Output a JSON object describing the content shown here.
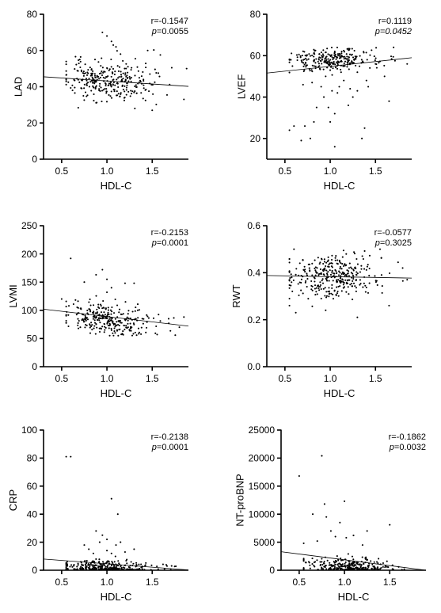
{
  "chart_data": [
    {
      "id": "lad",
      "type": "scatter",
      "xlabel": "HDL-C",
      "ylabel": "LAD",
      "xlim": [
        0.3,
        1.9
      ],
      "ylim": [
        0,
        80
      ],
      "xticks": [
        0.5,
        1.0,
        1.5
      ],
      "xtick_labels": [
        "0.5",
        "1.0",
        "1.5"
      ],
      "yticks": [
        0,
        20,
        40,
        60,
        80
      ],
      "ytick_labels": [
        "0",
        "20",
        "40",
        "60",
        "80"
      ],
      "stats": {
        "r": "r=-0.1547",
        "p_prefix": "p",
        "p_value": "=0.0055",
        "p_italic_value": false
      },
      "fit_line": {
        "x": [
          0.3,
          1.9
        ],
        "y": [
          45.5,
          40.2
        ]
      },
      "gen": {
        "n": 300,
        "yCenterAt1": 43.0,
        "slope": -3.3,
        "spread": 5.5,
        "ymin": 26,
        "ymax": 70,
        "seed": 11
      },
      "points": [
        [
          0.95,
          70
        ],
        [
          1.0,
          68
        ],
        [
          1.05,
          65
        ],
        [
          1.07,
          63
        ],
        [
          1.1,
          62
        ],
        [
          1.45,
          60
        ],
        [
          1.88,
          50
        ],
        [
          1.85,
          33
        ],
        [
          1.5,
          27
        ],
        [
          0.62,
          38
        ],
        [
          0.7,
          55
        ],
        [
          1.15,
          58
        ]
      ]
    },
    {
      "id": "lvef",
      "type": "scatter",
      "xlabel": "HDL-C",
      "ylabel": "LVEF",
      "xlim": [
        0.3,
        1.9
      ],
      "ylim": [
        10,
        80
      ],
      "xticks": [
        0.5,
        1.0,
        1.5
      ],
      "xtick_labels": [
        "0.5",
        "1.0",
        "1.5"
      ],
      "yticks": [
        20,
        40,
        60,
        80
      ],
      "ytick_labels": [
        "20",
        "40",
        "60",
        "80"
      ],
      "stats": {
        "r": "r=0.1119",
        "p_prefix": "p",
        "p_value": "=0.0452",
        "p_italic_value": true
      },
      "fit_line": {
        "x": [
          0.3,
          1.9
        ],
        "y": [
          51.6,
          59.0
        ]
      },
      "gen": {
        "n": 260,
        "yCenterAt1": 58.0,
        "slope": 1.2,
        "spread": 2.5,
        "ymin": 50,
        "ymax": 64,
        "seed": 23
      },
      "points": [
        [
          0.55,
          24
        ],
        [
          0.6,
          26
        ],
        [
          0.68,
          19
        ],
        [
          0.72,
          26
        ],
        [
          0.78,
          20
        ],
        [
          0.82,
          28
        ],
        [
          0.85,
          35
        ],
        [
          0.9,
          45
        ],
        [
          0.93,
          40
        ],
        [
          0.95,
          50
        ],
        [
          0.98,
          35
        ],
        [
          1.0,
          28
        ],
        [
          1.02,
          43
        ],
        [
          1.05,
          16
        ],
        [
          1.05,
          32
        ],
        [
          1.08,
          42
        ],
        [
          1.1,
          45
        ],
        [
          1.15,
          48
        ],
        [
          1.2,
          36
        ],
        [
          1.22,
          44
        ],
        [
          1.25,
          40
        ],
        [
          1.3,
          43
        ],
        [
          1.35,
          20
        ],
        [
          1.38,
          25
        ],
        [
          1.4,
          48
        ],
        [
          1.42,
          45
        ],
        [
          1.6,
          50
        ],
        [
          1.65,
          38
        ],
        [
          0.7,
          46
        ],
        [
          0.8,
          47
        ],
        [
          1.0,
          53
        ],
        [
          1.12,
          52
        ],
        [
          0.88,
          55
        ],
        [
          1.3,
          52
        ],
        [
          1.5,
          56
        ],
        [
          1.85,
          56
        ],
        [
          1.7,
          64
        ]
      ]
    },
    {
      "id": "lvmi",
      "type": "scatter",
      "xlabel": "HDL-C",
      "ylabel": "LVMI",
      "xlim": [
        0.3,
        1.9
      ],
      "ylim": [
        0,
        250
      ],
      "xticks": [
        0.5,
        1.0,
        1.5
      ],
      "xtick_labels": [
        "0.5",
        "1.0",
        "1.5"
      ],
      "yticks": [
        0,
        50,
        100,
        150,
        200,
        250
      ],
      "ytick_labels": [
        "0",
        "50",
        "100",
        "150",
        "200",
        "250"
      ],
      "stats": {
        "r": "r=-0.2153",
        "p_prefix": "p",
        "p_value": "=0.0001",
        "p_italic_value": false
      },
      "fit_line": {
        "x": [
          0.3,
          1.9
        ],
        "y": [
          102,
          72
        ]
      },
      "gen": {
        "n": 290,
        "yCenterAt1": 85.0,
        "slope": -18,
        "spread": 15,
        "ymin": 55,
        "ymax": 135,
        "seed": 37
      },
      "points": [
        [
          0.6,
          192
        ],
        [
          0.95,
          172
        ],
        [
          0.88,
          163
        ],
        [
          0.75,
          150
        ],
        [
          1.0,
          155
        ],
        [
          1.2,
          148
        ],
        [
          1.3,
          148
        ],
        [
          0.5,
          120
        ],
        [
          1.85,
          88
        ],
        [
          1.8,
          70
        ],
        [
          1.05,
          140
        ],
        [
          1.0,
          132
        ]
      ]
    },
    {
      "id": "rwt",
      "type": "scatter",
      "xlabel": "HDL-C",
      "ylabel": "RWT",
      "xlim": [
        0.3,
        1.9
      ],
      "ylim": [
        0,
        0.6
      ],
      "xticks": [
        0.5,
        1.0,
        1.5
      ],
      "xtick_labels": [
        "0.5",
        "1.0",
        "1.5"
      ],
      "yticks": [
        0,
        0.2,
        0.4,
        0.6
      ],
      "ytick_labels": [
        "0.0",
        "0.2",
        "0.4",
        "0.6"
      ],
      "stats": {
        "r": "r=-0.0577",
        "p_prefix": "p",
        "p_value": "=0.3025",
        "p_italic_value": false
      },
      "fit_line": {
        "x": [
          0.3,
          1.9
        ],
        "y": [
          0.388,
          0.377
        ]
      },
      "gen": {
        "n": 330,
        "yCenterAt1": 0.385,
        "slope": -0.005,
        "spread": 0.045,
        "ymin": 0.25,
        "ymax": 0.5,
        "seed": 53
      },
      "points": [
        [
          1.3,
          0.21
        ],
        [
          0.55,
          0.26
        ],
        [
          0.62,
          0.23
        ],
        [
          0.95,
          0.24
        ],
        [
          1.65,
          0.26
        ],
        [
          1.55,
          0.5
        ],
        [
          0.6,
          0.5
        ],
        [
          1.8,
          0.42
        ],
        [
          1.85,
          0.37
        ]
      ]
    },
    {
      "id": "crp",
      "type": "scatter",
      "xlabel": "HDL-C",
      "ylabel": "CRP",
      "xlim": [
        0.3,
        1.9
      ],
      "ylim": [
        0,
        100
      ],
      "xticks": [
        0.5,
        1.0,
        1.5
      ],
      "xtick_labels": [
        "0.5",
        "1.0",
        "1.5"
      ],
      "yticks": [
        0,
        20,
        40,
        60,
        80,
        100
      ],
      "ytick_labels": [
        "0",
        "20",
        "40",
        "60",
        "80",
        "100"
      ],
      "stats": {
        "r": "r=-0.2138",
        "p_prefix": "p",
        "p_value": "=0.0001",
        "p_italic_value": false
      },
      "fit_line": {
        "x": [
          0.3,
          1.9
        ],
        "y": [
          8.0,
          0.2
        ]
      },
      "gen": {
        "n": 300,
        "yCenterAt1": 2.0,
        "slope": -1.5,
        "spread": 2.5,
        "ymin": 0.2,
        "ymax": 10,
        "seed": 71
      },
      "points": [
        [
          0.55,
          81
        ],
        [
          0.6,
          81
        ],
        [
          1.05,
          51
        ],
        [
          1.12,
          40
        ],
        [
          0.88,
          28
        ],
        [
          0.92,
          20
        ],
        [
          0.95,
          25
        ],
        [
          1.0,
          22
        ],
        [
          1.1,
          18
        ],
        [
          1.15,
          20
        ],
        [
          1.2,
          13
        ],
        [
          0.8,
          15
        ],
        [
          0.75,
          18
        ],
        [
          0.85,
          12
        ],
        [
          1.3,
          15
        ],
        [
          1.0,
          14
        ],
        [
          1.05,
          12
        ]
      ]
    },
    {
      "id": "ntprobnp",
      "type": "scatter",
      "xlabel": "HDL-C",
      "ylabel": "NT-proBNP",
      "xlim": [
        0.3,
        1.9
      ],
      "ylim": [
        0,
        25000
      ],
      "xticks": [
        0.5,
        1.0,
        1.5
      ],
      "xtick_labels": [
        "0.5",
        "1.0",
        "1.5"
      ],
      "yticks": [
        0,
        5000,
        10000,
        15000,
        20000,
        25000
      ],
      "ytick_labels": [
        "0",
        "5000",
        "10000",
        "15000",
        "20000",
        "25000"
      ],
      "stats": {
        "r": "r=-0.1862",
        "p_prefix": "p",
        "p_value": "=0.0032",
        "p_italic_value": false
      },
      "fit_line": {
        "x": [
          0.3,
          1.9
        ],
        "y": [
          3300,
          -50
        ]
      },
      "gen": {
        "n": 280,
        "yCenterAt1": 700,
        "slope": -600,
        "spread": 700,
        "ymin": 50,
        "ymax": 3000,
        "seed": 89
      },
      "points": [
        [
          0.75,
          20400
        ],
        [
          0.5,
          16800
        ],
        [
          0.78,
          11800
        ],
        [
          1.0,
          12300
        ],
        [
          0.65,
          10000
        ],
        [
          0.8,
          9500
        ],
        [
          0.95,
          8500
        ],
        [
          1.5,
          8100
        ],
        [
          0.85,
          7000
        ],
        [
          1.25,
          7000
        ],
        [
          1.1,
          6200
        ],
        [
          0.9,
          6000
        ],
        [
          0.7,
          5200
        ],
        [
          1.2,
          4500
        ],
        [
          0.55,
          4800
        ],
        [
          1.02,
          5800
        ]
      ]
    }
  ]
}
